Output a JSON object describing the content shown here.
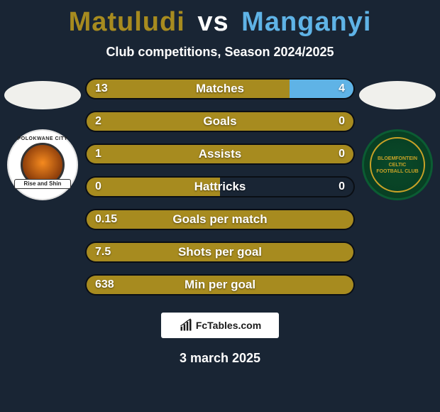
{
  "colors": {
    "bg": "#192534",
    "player1": "#a78b1f",
    "player2": "#5fb3e6",
    "title_p1": "#a78b1f",
    "title_p2": "#5fb3e6",
    "bar_border": "rgba(0,0,0,0.6)"
  },
  "title": {
    "p1": "Matuludi",
    "vs": "vs",
    "p2": "Manganyi"
  },
  "subtitle": "Club competitions, Season 2024/2025",
  "crest_left": {
    "top": "POLOKWANE CITY",
    "banner": "Rise and Shin"
  },
  "crest_right": {
    "line1": "BLOEMFONTEIN",
    "line2": "CELTIC",
    "line3": "FOOTBALL CLUB"
  },
  "bars": [
    {
      "label": "Matches",
      "left": "13",
      "right": "4",
      "left_pct": 76,
      "right_pct": 24
    },
    {
      "label": "Goals",
      "left": "2",
      "right": "0",
      "left_pct": 100,
      "right_pct": 0
    },
    {
      "label": "Assists",
      "left": "1",
      "right": "0",
      "left_pct": 100,
      "right_pct": 0
    },
    {
      "label": "Hattricks",
      "left": "0",
      "right": "0",
      "left_pct": 50,
      "right_pct": 0
    },
    {
      "label": "Goals per match",
      "left": "0.15",
      "right": "",
      "left_pct": 100,
      "right_pct": 0
    },
    {
      "label": "Shots per goal",
      "left": "7.5",
      "right": "",
      "left_pct": 100,
      "right_pct": 0
    },
    {
      "label": "Min per goal",
      "left": "638",
      "right": "",
      "left_pct": 100,
      "right_pct": 0
    }
  ],
  "bar_style": {
    "height": 30,
    "radius": 15,
    "gap": 16,
    "font_size": 17,
    "val_font_size": 16
  },
  "footer": {
    "brand": "FcTables.com",
    "date": "3 march 2025"
  }
}
